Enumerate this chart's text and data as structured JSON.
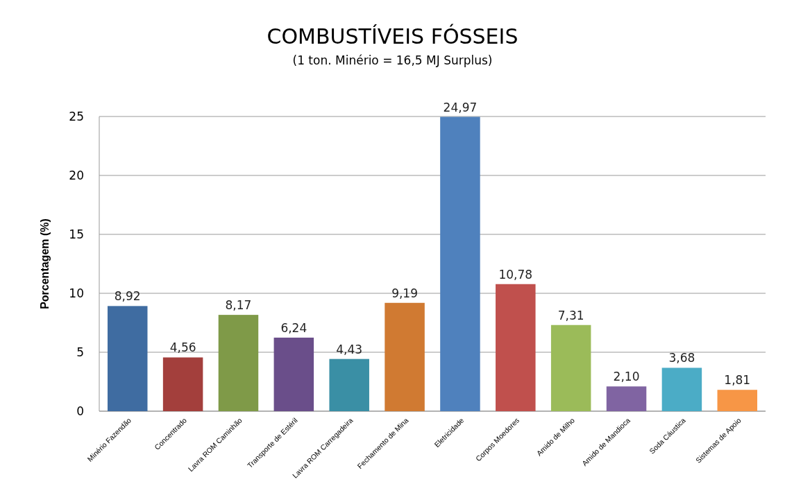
{
  "chart_data": {
    "type": "bar",
    "title": "COMBUSTÍVEIS FÓSSEIS",
    "subtitle": "(1 ton. Minério = 16,5 MJ Surplus)",
    "ylabel": "Porcentagem (%)",
    "categories": [
      "Minério Fazendão",
      "Concentrado",
      "Lavra ROM Caminhão",
      "Transporte de Estéril",
      "Lavra ROM Carregadeira",
      "Fechamento de Mina",
      "Eletricidade",
      "Corpos Moedores",
      "Amido de Milho",
      "Amido de Mandioca",
      "Soda Cáustica",
      "Sistemas de Apoio"
    ],
    "values": [
      8.92,
      4.56,
      8.17,
      6.24,
      4.43,
      9.19,
      24.97,
      10.78,
      7.31,
      2.1,
      3.68,
      1.81
    ],
    "value_labels": [
      "8,92",
      "4,56",
      "8,17",
      "6,24",
      "4,43",
      "9,19",
      "24,97",
      "10,78",
      "7,31",
      "2,10",
      "3,68",
      "1,81"
    ],
    "colors": [
      "#3f6ca1",
      "#a33f3c",
      "#7f9a48",
      "#6a4e8a",
      "#3a8fa5",
      "#d07a32",
      "#4f81bd",
      "#c0504d",
      "#9bbb59",
      "#8064a2",
      "#4bacc6",
      "#f79646"
    ],
    "ylim": [
      0,
      25
    ],
    "yticks": [
      0,
      5,
      10,
      15,
      20,
      25
    ],
    "grid": "y"
  }
}
